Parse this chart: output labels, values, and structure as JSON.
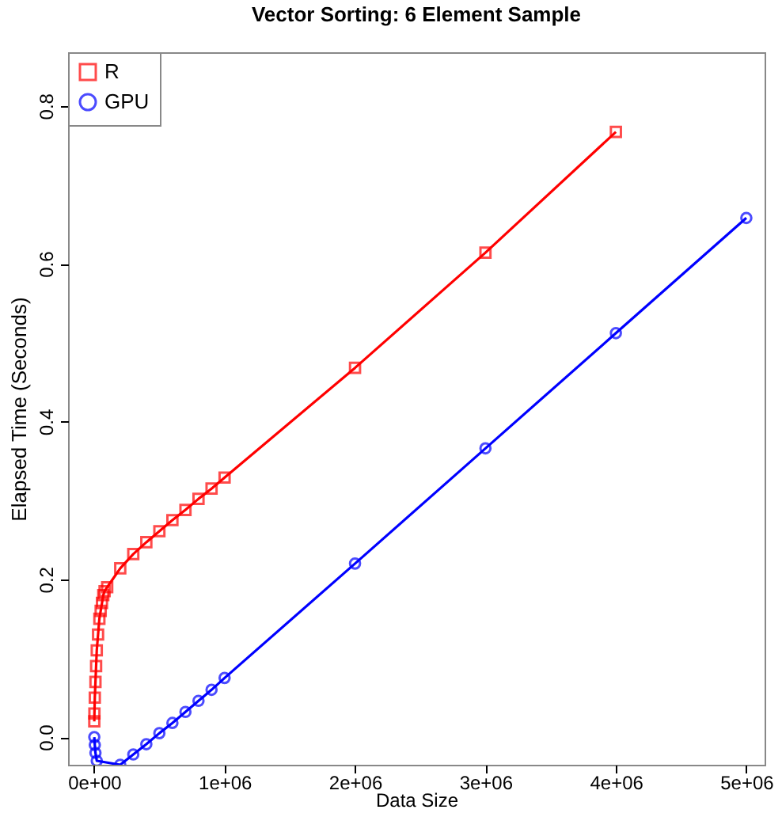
{
  "chart_data": {
    "type": "line",
    "title": "Vector Sorting: 6 Element Sample",
    "xlabel": "Data Size",
    "ylabel": "Elapsed Time (Seconds)",
    "xlim": [
      -200000,
      5140000
    ],
    "ylim": [
      -0.035,
      0.868
    ],
    "xticks": [
      {
        "value": 0,
        "label": "0e+00"
      },
      {
        "value": 1000000,
        "label": "1e+06"
      },
      {
        "value": 2000000,
        "label": "2e+06"
      },
      {
        "value": 3000000,
        "label": "3e+06"
      },
      {
        "value": 4000000,
        "label": "4e+06"
      },
      {
        "value": 5000000,
        "label": "5e+06"
      }
    ],
    "yticks": [
      {
        "value": 0,
        "label": "0.0"
      },
      {
        "value": 0.2,
        "label": "0.2"
      },
      {
        "value": 0.4,
        "label": "0.4"
      },
      {
        "value": 0.6,
        "label": "0.6"
      },
      {
        "value": 0.8,
        "label": "0.8"
      }
    ],
    "grid": false,
    "legend": "top left",
    "line_style": "solid",
    "series": [
      {
        "name": "R",
        "color": "#ff0000",
        "marker": "square",
        "x": [
          1000,
          2000,
          5000,
          10000,
          15000,
          20000,
          30000,
          40000,
          50000,
          60000,
          70000,
          80000,
          100000,
          200000,
          300000,
          400000,
          500000,
          600000,
          700000,
          800000,
          900000,
          1000000,
          2000000,
          3000000,
          4000000
        ],
        "values": [
          0.02,
          0.03,
          0.05,
          0.07,
          0.09,
          0.11,
          0.13,
          0.15,
          0.16,
          0.17,
          0.18,
          0.185,
          0.19,
          0.214,
          0.232,
          0.247,
          0.261,
          0.275,
          0.288,
          0.302,
          0.315,
          0.329,
          0.468,
          0.614,
          0.767
        ]
      },
      {
        "name": "GPU",
        "color": "#0000ff",
        "marker": "circle",
        "x": [
          1000,
          5000,
          10000,
          20000,
          200000,
          300000,
          400000,
          500000,
          600000,
          700000,
          800000,
          900000,
          1000000,
          2000000,
          3000000,
          4000000,
          5000000
        ],
        "values": [
          0.0,
          -0.01,
          -0.02,
          -0.03,
          -0.035,
          -0.022,
          -0.009,
          0.005,
          0.018,
          0.032,
          0.046,
          0.06,
          0.075,
          0.22,
          0.366,
          0.512,
          0.658
        ]
      }
    ]
  }
}
